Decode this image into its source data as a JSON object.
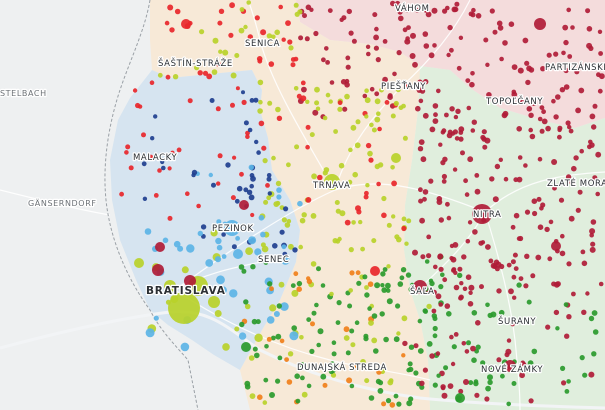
{
  "map": {
    "colors": {
      "background": "#eef0f1",
      "region_bratislava": "#d6e4f0",
      "region_trnava": "#f7e9d7",
      "region_nitra": "#e0eedd",
      "region_trencin": "#f4dcdc",
      "dark_red": "#b01c37",
      "red": "#e8262b",
      "blue": "#1f3f8f",
      "light_blue": "#5cb4e6",
      "lime": "#b9d12a",
      "green": "#2a9a2d",
      "orange": "#f07f1a"
    },
    "places": [
      {
        "key": "vahom",
        "name": "VÁHOM"
      },
      {
        "key": "senica",
        "name": "SENICA"
      },
      {
        "key": "sastin",
        "name": "ŠAŠTÍN-STRÁŽE"
      },
      {
        "key": "partizanske",
        "name": "PARTIZÁNSKE"
      },
      {
        "key": "stelbach",
        "name": "STELBACH"
      },
      {
        "key": "piestany",
        "name": "PIEŠŤANY"
      },
      {
        "key": "topolcany",
        "name": "TOPOĽČANY"
      },
      {
        "key": "malacky",
        "name": "MALACKY"
      },
      {
        "key": "zlate_moravce",
        "name": "ZLATÉ MORAV"
      },
      {
        "key": "trnava",
        "name": "TRNAVA"
      },
      {
        "key": "gansendorf",
        "name": "GÄNSERNDORF"
      },
      {
        "key": "nitra",
        "name": "NITRA"
      },
      {
        "key": "pezinok",
        "name": "PEZINOK"
      },
      {
        "key": "senec",
        "name": "SENEC"
      },
      {
        "key": "bratislava",
        "name": "BRATISLAVA"
      },
      {
        "key": "sala",
        "name": "ŠAĽA"
      },
      {
        "key": "surany",
        "name": "ŠURANY"
      },
      {
        "key": "dunajska_streda",
        "name": "DUNAJSKÁ STREDA"
      },
      {
        "key": "nove_zamky",
        "name": "NOVÉ ZÁMKY"
      }
    ]
  }
}
